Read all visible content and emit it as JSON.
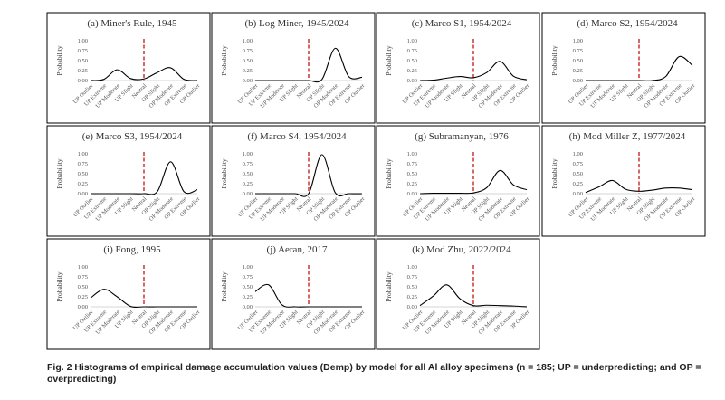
{
  "figure": {
    "caption": "Fig. 2  Histograms of empirical damage accumulation values (Demp) by model for all Al alloy specimens (n = 185; UP = underpredicting; and OP = overpredicting)",
    "accent_colors": {
      "curve": "#000000",
      "neutral_line": "#c00000",
      "frame": "#000000",
      "baseline": "#c8c8c8"
    }
  },
  "chart_data": [
    {
      "type": "line",
      "title": "(a) Miner's Rule, 1945",
      "ylabel": "Probability",
      "ylim": [
        0,
        1
      ],
      "yticks": [
        "0.00",
        "0.25",
        "0.50",
        "0.75",
        "1.00"
      ],
      "categories": [
        "UP Outlier",
        "UP Extreme",
        "UP Moderate",
        "UP Slight",
        "Neutral",
        "OP Slight",
        "OP Moderate",
        "OP Extreme",
        "OP Outlier"
      ],
      "values": [
        0.0,
        0.03,
        0.27,
        0.05,
        0.04,
        0.2,
        0.32,
        0.03,
        0.0
      ],
      "neutral_marker": "Neutral"
    },
    {
      "type": "line",
      "title": "(b) Log Miner, 1945/2024",
      "ylabel": "Probability",
      "ylim": [
        0,
        1
      ],
      "yticks": [
        "0.00",
        "0.25",
        "0.50",
        "0.75",
        "1.00"
      ],
      "categories": [
        "UP Outlier",
        "UP Extreme",
        "UP Moderate",
        "UP Slight",
        "Neutral",
        "OP Slight",
        "OP Moderate",
        "OP Extreme",
        "OP Outlier"
      ],
      "values": [
        0.0,
        0.0,
        0.0,
        0.0,
        0.0,
        0.03,
        0.81,
        0.1,
        0.08
      ],
      "neutral_marker": "Neutral"
    },
    {
      "type": "line",
      "title": "(c) Marco S1, 1954/2024",
      "ylabel": "Probability",
      "ylim": [
        0,
        1
      ],
      "yticks": [
        "0.00",
        "0.25",
        "0.50",
        "0.75",
        "1.00"
      ],
      "categories": [
        "UP Outlier",
        "UP Extreme",
        "UP Moderate",
        "UP Slight",
        "Neutral",
        "OP Slight",
        "OP Moderate",
        "OP Extreme",
        "OP Outlier"
      ],
      "values": [
        0.0,
        0.01,
        0.06,
        0.1,
        0.07,
        0.2,
        0.48,
        0.11,
        0.02
      ],
      "neutral_marker": "Neutral"
    },
    {
      "type": "line",
      "title": "(d) Marco S2, 1954/2024",
      "ylabel": "Probability",
      "ylim": [
        0,
        1
      ],
      "yticks": [
        "0.00",
        "0.25",
        "0.50",
        "0.75",
        "1.00"
      ],
      "categories": [
        "UP Outlier",
        "UP Extreme",
        "UP Moderate",
        "UP Slight",
        "Neutral",
        "OP Slight",
        "OP Moderate",
        "OP Extreme",
        "OP Outlier"
      ],
      "values": [
        0.0,
        0.0,
        0.0,
        0.0,
        0.0,
        0.0,
        0.1,
        0.6,
        0.38
      ],
      "neutral_marker": "Neutral"
    },
    {
      "type": "line",
      "title": "(e) Marco S3, 1954/2024",
      "ylabel": "Probability",
      "ylim": [
        0,
        1
      ],
      "yticks": [
        "0.00",
        "0.25",
        "0.50",
        "0.75",
        "1.00"
      ],
      "categories": [
        "UP Outlier",
        "UP Extreme",
        "UP Moderate",
        "UP Slight",
        "Neutral",
        "OP Slight",
        "OP Moderate",
        "OP Extreme",
        "OP Outlier"
      ],
      "values": [
        0.0,
        0.0,
        0.0,
        0.0,
        0.0,
        0.05,
        0.8,
        0.05,
        0.1
      ],
      "neutral_marker": "Neutral"
    },
    {
      "type": "line",
      "title": "(f) Marco S4, 1954/2024",
      "ylabel": "Probability",
      "ylim": [
        0,
        1
      ],
      "yticks": [
        "0.00",
        "0.25",
        "0.50",
        "0.75",
        "1.00"
      ],
      "categories": [
        "UP Outlier",
        "UP Extreme",
        "UP Moderate",
        "UP Slight",
        "Neutral",
        "OP Slight",
        "OP Moderate",
        "OP Extreme",
        "OP Outlier"
      ],
      "values": [
        0.0,
        0.0,
        0.0,
        0.0,
        0.0,
        0.98,
        0.02,
        0.0,
        0.0
      ],
      "neutral_marker": "Neutral"
    },
    {
      "type": "line",
      "title": "(g) Subramanyan, 1976",
      "ylabel": "Probability",
      "ylim": [
        0,
        1
      ],
      "yticks": [
        "0.00",
        "0.25",
        "0.50",
        "0.75",
        "1.00"
      ],
      "categories": [
        "UP Outlier",
        "UP Extreme",
        "UP Moderate",
        "UP Slight",
        "Neutral",
        "OP Slight",
        "OP Moderate",
        "OP Extreme",
        "OP Outlier"
      ],
      "values": [
        0.0,
        0.01,
        0.01,
        0.01,
        0.02,
        0.15,
        0.58,
        0.22,
        0.1
      ],
      "neutral_marker": "Neutral"
    },
    {
      "type": "line",
      "title": "(h) Mod Miller Z, 1977/2024",
      "ylabel": "Probability",
      "ylim": [
        0,
        1
      ],
      "yticks": [
        "0.00",
        "0.25",
        "0.50",
        "0.75",
        "1.00"
      ],
      "categories": [
        "UP Outlier",
        "UP Extreme",
        "UP Moderate",
        "UP Slight",
        "Neutral",
        "OP Slight",
        "OP Moderate",
        "OP Extreme",
        "OP Outlier"
      ],
      "values": [
        0.03,
        0.17,
        0.33,
        0.11,
        0.06,
        0.09,
        0.14,
        0.14,
        0.1
      ],
      "neutral_marker": "Neutral"
    },
    {
      "type": "line",
      "title": "(i) Fong, 1995",
      "ylabel": "Probability",
      "ylim": [
        0,
        1
      ],
      "yticks": [
        "0.00",
        "0.25",
        "0.50",
        "0.75",
        "1.00"
      ],
      "categories": [
        "UP Outlier",
        "UP Extreme",
        "UP Moderate",
        "UP Slight",
        "Neutral",
        "OP Slight",
        "OP Moderate",
        "OP Extreme",
        "OP Outlier"
      ],
      "values": [
        0.22,
        0.44,
        0.25,
        0.01,
        0.0,
        0.0,
        0.0,
        0.0,
        0.0
      ],
      "neutral_marker": "Neutral"
    },
    {
      "type": "line",
      "title": "(j) Aeran, 2017",
      "ylabel": "Probability",
      "ylim": [
        0,
        1
      ],
      "yticks": [
        "0.00",
        "0.25",
        "0.50",
        "0.75",
        "1.00"
      ],
      "categories": [
        "UP Outlier",
        "UP Extreme",
        "UP Moderate",
        "UP Slight",
        "Neutral",
        "OP Slight",
        "OP Moderate",
        "OP Extreme",
        "OP Outlier"
      ],
      "values": [
        0.38,
        0.55,
        0.05,
        0.0,
        0.0,
        0.0,
        0.0,
        0.0,
        0.0
      ],
      "neutral_marker": "Neutral"
    },
    {
      "type": "line",
      "title": "(k) Mod Zhu, 2022/2024",
      "ylabel": "Probability",
      "ylim": [
        0,
        1
      ],
      "yticks": [
        "0.00",
        "0.25",
        "0.50",
        "0.75",
        "1.00"
      ],
      "categories": [
        "UP Outlier",
        "UP Extreme",
        "UP Moderate",
        "UP Slight",
        "Neutral",
        "OP Slight",
        "OP Moderate",
        "OP Extreme",
        "OP Outlier"
      ],
      "values": [
        0.03,
        0.27,
        0.55,
        0.2,
        0.03,
        0.04,
        0.03,
        0.02,
        0.0
      ],
      "neutral_marker": "Neutral"
    }
  ]
}
